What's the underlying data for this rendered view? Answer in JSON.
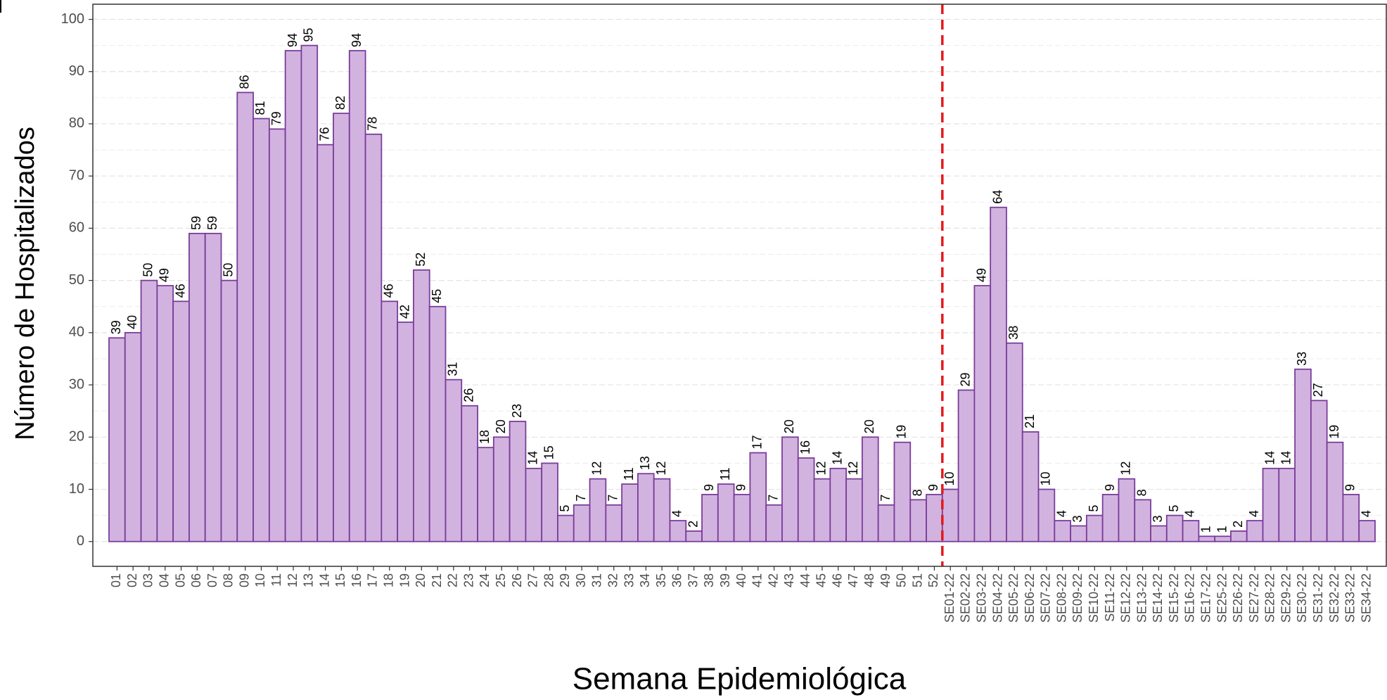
{
  "chart_data": {
    "type": "bar",
    "xlabel": "Semana Epidemiológica",
    "ylabel": "Número de Hospitalizados",
    "categories": [
      "01",
      "02",
      "03",
      "04",
      "05",
      "06",
      "07",
      "08",
      "09",
      "10",
      "11",
      "12",
      "13",
      "14",
      "15",
      "16",
      "17",
      "18",
      "19",
      "20",
      "21",
      "22",
      "23",
      "24",
      "25",
      "26",
      "27",
      "28",
      "29",
      "30",
      "31",
      "32",
      "33",
      "34",
      "35",
      "36",
      "37",
      "38",
      "39",
      "40",
      "41",
      "42",
      "43",
      "44",
      "45",
      "46",
      "47",
      "48",
      "49",
      "50",
      "51",
      "52",
      "SE01-22",
      "SE02-22",
      "SE03-22",
      "SE04-22",
      "SE05-22",
      "SE06-22",
      "SE07-22",
      "SE08-22",
      "SE09-22",
      "SE10-22",
      "SE11-22",
      "SE12-22",
      "SE13-22",
      "SE14-22",
      "SE15-22",
      "SE16-22",
      "SE17-22",
      "SE25-22",
      "SE26-22",
      "SE27-22",
      "SE28-22",
      "SE29-22",
      "SE30-22",
      "SE31-22",
      "SE32-22",
      "SE33-22",
      "SE34-22"
    ],
    "values": [
      39,
      40,
      50,
      49,
      46,
      59,
      59,
      50,
      86,
      81,
      79,
      94,
      95,
      76,
      82,
      94,
      78,
      46,
      42,
      52,
      45,
      31,
      26,
      18,
      20,
      23,
      14,
      15,
      5,
      7,
      12,
      7,
      11,
      13,
      12,
      4,
      2,
      9,
      11,
      9,
      17,
      7,
      20,
      16,
      12,
      14,
      12,
      20,
      7,
      19,
      8,
      9,
      10,
      29,
      49,
      64,
      38,
      21,
      10,
      4,
      3,
      5,
      9,
      12,
      8,
      3,
      5,
      4,
      1,
      1,
      2,
      4,
      14,
      14,
      33,
      27,
      19,
      9,
      4
    ],
    "color": "#d2b3e0",
    "edge_color": "#7a3d99",
    "ylim": [
      -4.75,
      102.9
    ],
    "yticks": [
      0,
      10,
      20,
      30,
      40,
      50,
      60,
      70,
      80,
      90,
      100
    ],
    "grid": true,
    "minor_grid": true,
    "vline_at_category": "SE01-22",
    "vline_color": "#e31a1c"
  }
}
